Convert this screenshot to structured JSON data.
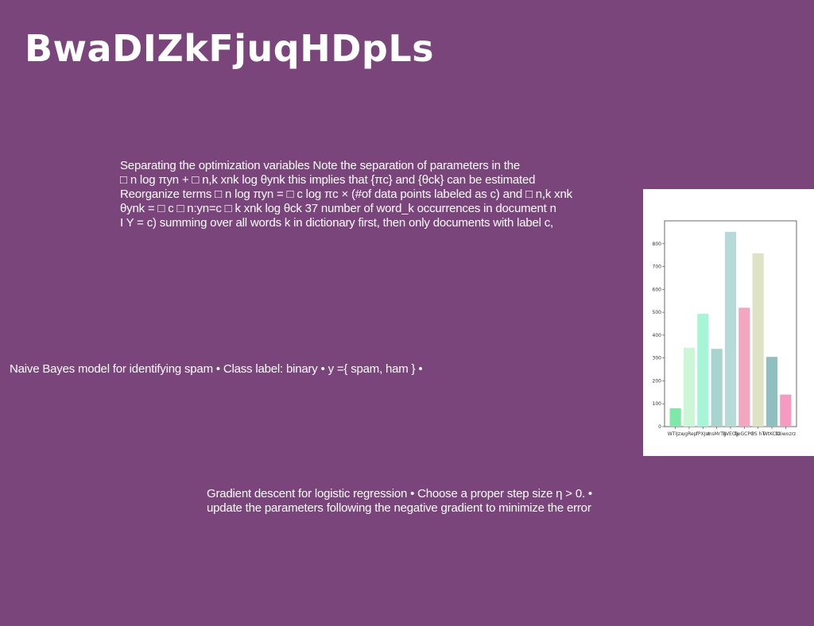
{
  "slide": {
    "title": "BwaDIZkFjuqHDpLs",
    "paragraph1": [
      "Separating the optimization variables Note the separation of parameters in the",
      "□ n log πyn + □ n,k xnk log θynk this implies that {πc} and {θck} can be estimated",
      "Reorganize terms □ n log πyn = □ c log πc × (#of data points labeled as c) and □ n,k xnk",
      "θynk = □ c □ n:yn=c □ k xnk log θck 37 number of word_k occurrences in document n",
      "I Y = c) summing over all words k in dictionary first, then only documents with label c,"
    ],
    "paragraph2": [
      "Naive Bayes model for identifying spam • Class label: binary • y ={ spam, ham } •"
    ],
    "paragraph3": [
      "Gradient descent for logistic regression • Choose a proper step size η > 0. •",
      "update the parameters following the negative gradient to minimize the error"
    ]
  },
  "chart_data": {
    "type": "bar",
    "categories": [
      "WTIJzx",
      "ugRep",
      "fPXJst",
      "msMrTg",
      "SVECq",
      "fjeGCPG",
      "PS hT",
      "WtKCsz",
      "fGiwozrz"
    ],
    "values": [
      80,
      345,
      493,
      340,
      852,
      520,
      758,
      305,
      140
    ],
    "colors": [
      "#7ee8a8",
      "#ccf7d6",
      "#a6f5d7",
      "#a8d3cf",
      "#b5dad8",
      "#f2a6bf",
      "#dfe3c6",
      "#8fbfbf",
      "#f59ac0"
    ],
    "ylim": [
      0,
      900
    ],
    "yticks": [
      0,
      100,
      200,
      300,
      400,
      500,
      600,
      700,
      800
    ],
    "grid": false,
    "title": "",
    "xlabel": "",
    "ylabel": ""
  }
}
